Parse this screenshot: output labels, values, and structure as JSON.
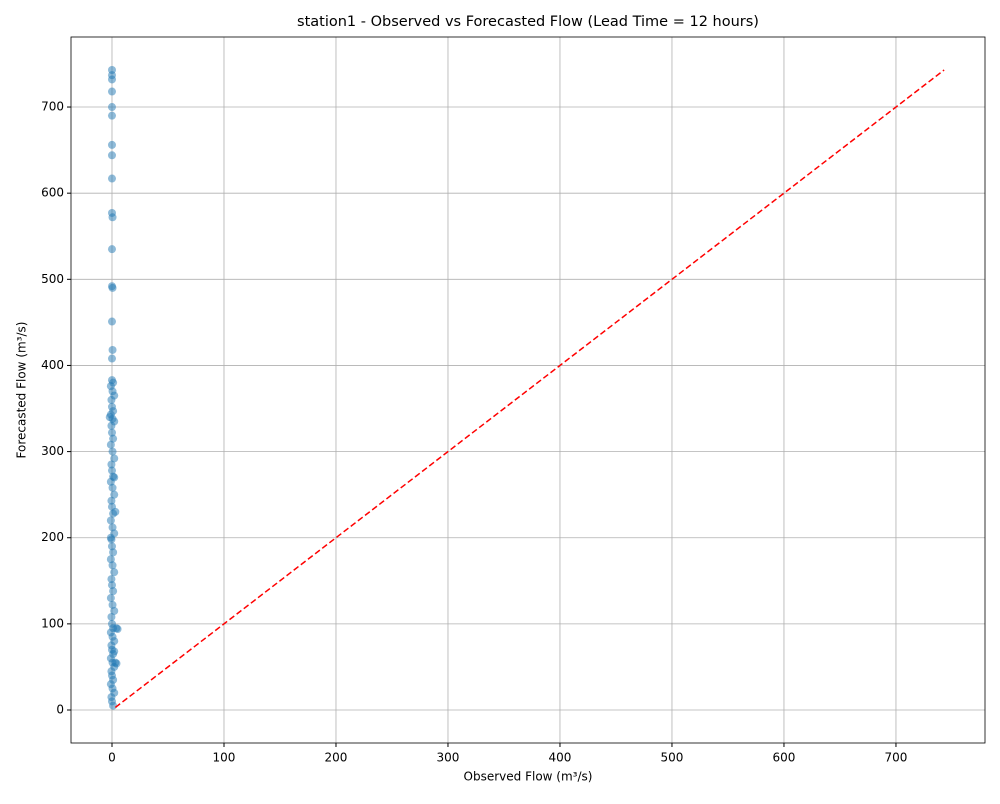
{
  "chart_data": {
    "type": "scatter",
    "title": "station1 - Observed vs Forecasted Flow (Lead Time = 12 hours)",
    "x_label": "Observed Flow (m³/s)",
    "y_label": "Forecasted Flow (m³/s)",
    "color": "#1f77b4",
    "line_color": "#ff0000",
    "diagonal": [
      3,
      743
    ],
    "x": [
      0,
      0,
      0,
      0,
      0,
      0,
      0,
      0,
      0,
      0,
      0.5,
      0,
      0,
      0.5,
      0,
      0.5,
      0,
      0,
      1,
      -1,
      0.5,
      2,
      -0.5,
      0,
      1,
      -1,
      0.5,
      2,
      -0.5,
      0,
      1,
      -1,
      0.5,
      2,
      -0.5,
      0,
      1,
      -1,
      0.5,
      2,
      -0.5,
      0,
      1,
      -1,
      0.5,
      2,
      -0.5,
      0,
      1,
      -1,
      0.5,
      2,
      -0.5,
      0,
      1,
      -1,
      0.5,
      2,
      -0.5,
      0,
      1,
      -1,
      0.5,
      2,
      -0.5,
      0,
      1,
      -1,
      0.5,
      2,
      -0.5,
      0,
      1,
      -1,
      0.5,
      2,
      -0.5,
      0,
      1,
      4,
      5,
      3,
      4,
      2,
      -2,
      -1,
      2,
      3
    ],
    "values": [
      743,
      737,
      732,
      718,
      700,
      690,
      656,
      644,
      617,
      577,
      572,
      535,
      492,
      490,
      451,
      418,
      408,
      383,
      380,
      376,
      370,
      365,
      360,
      352,
      347,
      343,
      338,
      335,
      330,
      322,
      315,
      308,
      300,
      292,
      285,
      278,
      271,
      265,
      258,
      250,
      243,
      236,
      228,
      220,
      212,
      205,
      198,
      190,
      183,
      175,
      168,
      160,
      152,
      145,
      138,
      130,
      122,
      115,
      108,
      100,
      95,
      90,
      85,
      80,
      75,
      70,
      65,
      60,
      55,
      50,
      45,
      40,
      35,
      30,
      25,
      20,
      15,
      10,
      5,
      95,
      94,
      55,
      54,
      68,
      340,
      200,
      270,
      230
    ],
    "xlim": [
      -36.6,
      779.5
    ],
    "ylim": [
      -38.3,
      781.3
    ],
    "xticks": [
      0,
      100,
      200,
      300,
      400,
      500,
      600,
      700
    ],
    "yticks": [
      0,
      100,
      200,
      300,
      400,
      500,
      600,
      700
    ],
    "grid": true
  }
}
